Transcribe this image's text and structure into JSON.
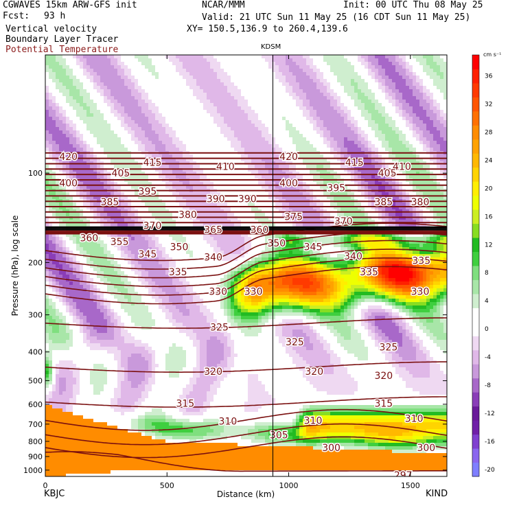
{
  "header": {
    "model": "CGWAVES 15km ARW-GFS init",
    "forecast_label": "Fcst:",
    "forecast_hours": "93 h",
    "field1": "Vertical velocity",
    "field2": "Boundary Layer Tracer",
    "field3": "Potential Temperature",
    "center": "NCAR/MMM",
    "init": "Init: 00 UTC Thu 08 May 25",
    "valid": "Valid: 21 UTC Sun 11 May 25 (16 CDT Sun 11 May 25)",
    "xy": "XY= 150.5,136.9 to 260.4,139.6",
    "station_marker": "KDSM",
    "left_station": "KBJC",
    "right_station": "KIND"
  },
  "colors": {
    "theta_line": "#7a0f0f",
    "header_red": "#8b1a1a"
  },
  "chart_data": {
    "type": "heatmap",
    "title": "Vertical velocity, Boundary Layer Tracer, Potential Temperature",
    "xlabel": "Distance (km)",
    "ylabel": "Pressure (hPa), log scale",
    "xlim": [
      0,
      1650
    ],
    "ylim": [
      1050,
      40
    ],
    "y_log": true,
    "x_ticks": [
      0,
      500,
      1000,
      1500
    ],
    "y_ticks": [
      100,
      200,
      300,
      400,
      500,
      600,
      700,
      800,
      900,
      1000
    ],
    "station_line_km": 935,
    "colorbar": {
      "unit": "cm s⁻¹",
      "levels": [
        -20,
        -18,
        -16,
        -14,
        -12,
        -10,
        -8,
        -6,
        -4,
        -2,
        0,
        2,
        4,
        6,
        8,
        10,
        12,
        14,
        16,
        18,
        20,
        22,
        24,
        26,
        28,
        30,
        32,
        34,
        36,
        38,
        40
      ],
      "labels": [
        -20,
        -16,
        -12,
        -8,
        -4,
        0,
        4,
        8,
        12,
        16,
        20,
        24,
        28,
        32,
        36
      ],
      "colors": [
        "#7f7fff",
        "#8a66ee",
        "#8040d0",
        "#7020a8",
        "#6a1a9a",
        "#8a3db8",
        "#a868c9",
        "#c999db",
        "#e0b8e8",
        "#efd9f2",
        "#ffffff",
        "#ffffff",
        "#cfeecf",
        "#a8e6a8",
        "#7fdf7f",
        "#3fcf3f",
        "#22bb22",
        "#88dd22",
        "#ccee22",
        "#eeff00",
        "#ffee00",
        "#ffd400",
        "#ffb800",
        "#ffa200",
        "#ff8c00",
        "#ff7000",
        "#ff5500",
        "#ff3a00",
        "#ff2000",
        "#ff0000"
      ]
    },
    "theta_labels": [
      {
        "t": 420,
        "x": 95,
        "p": 88
      },
      {
        "t": 415,
        "x": 440,
        "p": 92
      },
      {
        "t": 410,
        "x": 740,
        "p": 95
      },
      {
        "t": 420,
        "x": 1000,
        "p": 88
      },
      {
        "t": 415,
        "x": 1270,
        "p": 92
      },
      {
        "t": 410,
        "x": 1465,
        "p": 95
      },
      {
        "t": 405,
        "x": 1405,
        "p": 100
      },
      {
        "t": 400,
        "x": 1000,
        "p": 108
      },
      {
        "t": 395,
        "x": 1195,
        "p": 112
      },
      {
        "t": 400,
        "x": 95,
        "p": 108
      },
      {
        "t": 405,
        "x": 310,
        "p": 100
      },
      {
        "t": 395,
        "x": 420,
        "p": 115
      },
      {
        "t": 390,
        "x": 700,
        "p": 122
      },
      {
        "t": 390,
        "x": 830,
        "p": 122
      },
      {
        "t": 385,
        "x": 265,
        "p": 125
      },
      {
        "t": 385,
        "x": 1390,
        "p": 125
      },
      {
        "t": 380,
        "x": 1540,
        "p": 125
      },
      {
        "t": 380,
        "x": 585,
        "p": 138
      },
      {
        "t": 375,
        "x": 1020,
        "p": 140
      },
      {
        "t": 370,
        "x": 1225,
        "p": 145
      },
      {
        "t": 370,
        "x": 440,
        "p": 150
      },
      {
        "t": 365,
        "x": 690,
        "p": 155
      },
      {
        "t": 360,
        "x": 880,
        "p": 155
      },
      {
        "t": 360,
        "x": 180,
        "p": 165
      },
      {
        "t": 355,
        "x": 305,
        "p": 170
      },
      {
        "t": 350,
        "x": 550,
        "p": 177
      },
      {
        "t": 345,
        "x": 420,
        "p": 187
      },
      {
        "t": 340,
        "x": 690,
        "p": 192
      },
      {
        "t": 350,
        "x": 950,
        "p": 172
      },
      {
        "t": 345,
        "x": 1100,
        "p": 177
      },
      {
        "t": 340,
        "x": 1265,
        "p": 190
      },
      {
        "t": 335,
        "x": 1545,
        "p": 197
      },
      {
        "t": 335,
        "x": 1330,
        "p": 215
      },
      {
        "t": 335,
        "x": 545,
        "p": 215
      },
      {
        "t": 330,
        "x": 710,
        "p": 250
      },
      {
        "t": 330,
        "x": 855,
        "p": 250
      },
      {
        "t": 330,
        "x": 1540,
        "p": 250
      },
      {
        "t": 325,
        "x": 715,
        "p": 330
      },
      {
        "t": 325,
        "x": 1025,
        "p": 370
      },
      {
        "t": 325,
        "x": 1410,
        "p": 385
      },
      {
        "t": 320,
        "x": 690,
        "p": 465
      },
      {
        "t": 320,
        "x": 1105,
        "p": 465
      },
      {
        "t": 320,
        "x": 1390,
        "p": 480
      },
      {
        "t": 315,
        "x": 575,
        "p": 595
      },
      {
        "t": 315,
        "x": 1390,
        "p": 595
      },
      {
        "t": 310,
        "x": 750,
        "p": 685
      },
      {
        "t": 310,
        "x": 1100,
        "p": 680
      },
      {
        "t": 310,
        "x": 1515,
        "p": 670
      },
      {
        "t": 305,
        "x": 960,
        "p": 760
      },
      {
        "t": 300,
        "x": 1175,
        "p": 840
      },
      {
        "t": 300,
        "x": 1565,
        "p": 840
      },
      {
        "t": 297,
        "x": 1470,
        "p": 1040
      }
    ]
  }
}
